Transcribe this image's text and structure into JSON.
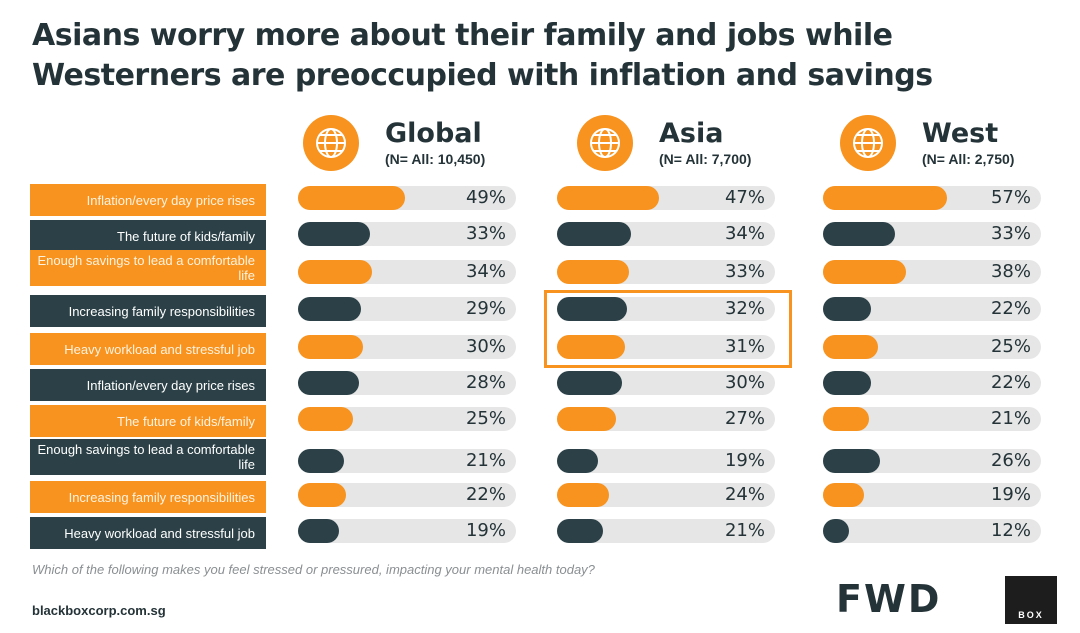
{
  "title": "Asians worry more about their family and jobs while Westerners are preoccupied with inflation and savings",
  "question": "Which of the following makes you feel stressed or pressured, impacting your mental health today?",
  "footer": {
    "url": "blackboxcorp.com.sg",
    "brand": "FWD",
    "box_label": "BOX"
  },
  "colors": {
    "orange": "#f7931e",
    "teal": "#2b4147",
    "track": "#e6e6e6"
  },
  "regions": [
    {
      "name": "Global",
      "n": "(N= All: 10,450)",
      "icon": "globe-icon"
    },
    {
      "name": "Asia",
      "n": "(N= All: 7,700)",
      "icon": "globe-icon"
    },
    {
      "name": "West",
      "n": "(N= All: 2,750)",
      "icon": "globe-icon"
    }
  ],
  "chart_data": {
    "type": "bar",
    "orientation": "horizontal",
    "title": "Asians worry more about their family and jobs while Westerners are preoccupied with inflation and savings",
    "categories": [
      "Inflation/every day price rises",
      "The future of kids/family",
      "Enough savings to lead a comfortable life",
      "Increasing family responsibilities",
      "Heavy workload and stressful job",
      "Inflation/every day price rises",
      "The future of kids/family",
      "Enough savings to lead a comfortable life",
      "Increasing family responsibilities",
      "Heavy workload and stressful job"
    ],
    "category_colors": [
      "orange",
      "teal",
      "orange",
      "teal",
      "orange",
      "teal",
      "orange",
      "teal",
      "orange",
      "teal"
    ],
    "series": [
      {
        "name": "Global",
        "values": [
          49,
          33,
          34,
          29,
          30,
          28,
          25,
          21,
          22,
          19
        ],
        "labels": [
          "49%",
          "33%",
          "34%",
          "29%",
          "30%",
          "28%",
          "25%",
          "21%",
          "22%",
          "19%"
        ]
      },
      {
        "name": "Asia",
        "values": [
          47,
          34,
          33,
          32,
          31,
          30,
          27,
          19,
          24,
          21
        ],
        "labels": [
          "47%",
          "34%",
          "33%",
          "32%",
          "31%",
          "30%",
          "27%",
          "19%",
          "24%",
          "21%"
        ]
      },
      {
        "name": "West",
        "values": [
          57,
          33,
          38,
          22,
          25,
          22,
          21,
          26,
          19,
          12
        ],
        "labels": [
          "57%",
          "33%",
          "38%",
          "22%",
          "25%",
          "22%",
          "21%",
          "26%",
          "19%",
          "12%"
        ]
      }
    ],
    "xlim": [
      0,
      100
    ],
    "highlight": {
      "series": "Asia",
      "categories_index": [
        3,
        4
      ]
    }
  }
}
